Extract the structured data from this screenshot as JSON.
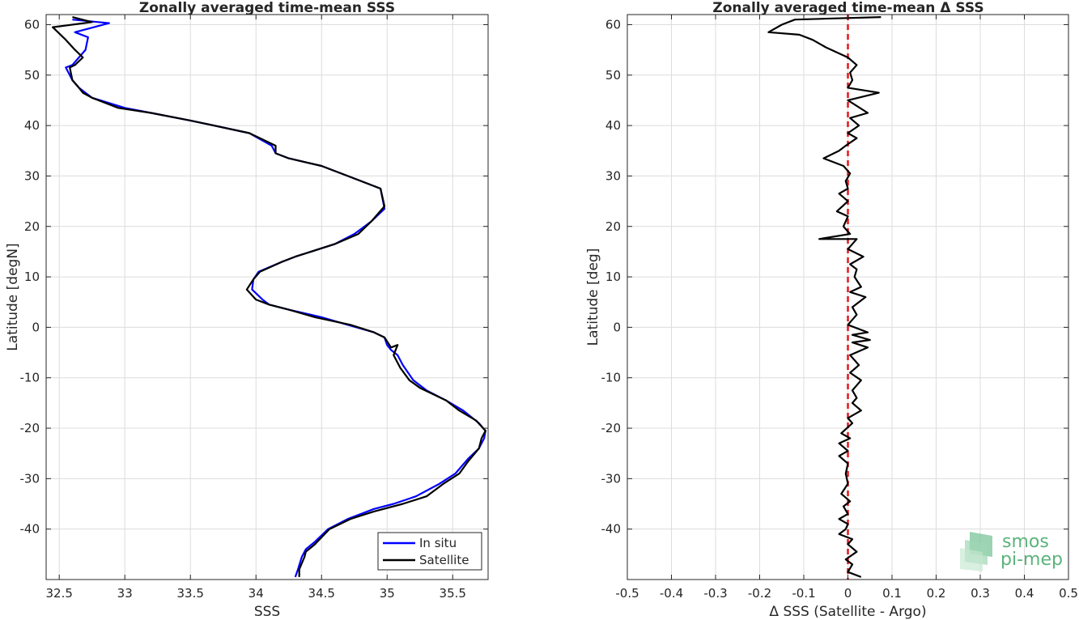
{
  "chart_data": [
    {
      "type": "line",
      "title": "Zonally averaged time-mean SSS",
      "xlabel": "SSS",
      "ylabel": "Latitude [degN]",
      "xlim": [
        32.4,
        35.77
      ],
      "ylim": [
        -50,
        62
      ],
      "xticks": [
        32.5,
        33,
        33.5,
        34,
        34.5,
        35,
        35.5
      ],
      "xtick_labels": [
        "32.5",
        "33",
        "33.5",
        "34",
        "34.5",
        "35",
        "35.5"
      ],
      "yticks": [
        -40,
        -30,
        -20,
        -10,
        0,
        10,
        20,
        30,
        40,
        50,
        60
      ],
      "ytick_labels": [
        "-40",
        "-30",
        "-20",
        "-10",
        "0",
        "10",
        "20",
        "30",
        "40",
        "50",
        "60"
      ],
      "grid": true,
      "legend_position": "bottom-right",
      "series": [
        {
          "name": "In situ",
          "color": "#0000ff",
          "points": [
            [
              34.3,
              -49.5
            ],
            [
              34.32,
              -48
            ],
            [
              34.35,
              -45.5
            ],
            [
              34.38,
              -44
            ],
            [
              34.45,
              -42.5
            ],
            [
              34.55,
              -40
            ],
            [
              34.7,
              -38
            ],
            [
              34.9,
              -36
            ],
            [
              35.05,
              -35
            ],
            [
              35.22,
              -33.5
            ],
            [
              35.4,
              -31
            ],
            [
              35.52,
              -29
            ],
            [
              35.62,
              -26
            ],
            [
              35.7,
              -24
            ],
            [
              35.74,
              -22
            ],
            [
              35.75,
              -20.5
            ],
            [
              35.7,
              -19
            ],
            [
              35.58,
              -16.5
            ],
            [
              35.45,
              -14.5
            ],
            [
              35.3,
              -12.5
            ],
            [
              35.2,
              -10.5
            ],
            [
              35.12,
              -7.5
            ],
            [
              35.08,
              -5.5
            ],
            [
              35.03,
              -4.5
            ],
            [
              35.0,
              -3.5
            ],
            [
              34.98,
              -2
            ],
            [
              34.9,
              -1
            ],
            [
              34.7,
              0.5
            ],
            [
              34.5,
              2
            ],
            [
              34.25,
              3.5
            ],
            [
              34.1,
              4.5
            ],
            [
              34.05,
              5.5
            ],
            [
              33.97,
              7.5
            ],
            [
              33.98,
              9.5
            ],
            [
              34.02,
              11
            ],
            [
              34.2,
              13
            ],
            [
              34.3,
              14
            ],
            [
              34.6,
              16.5
            ],
            [
              34.75,
              18.5
            ],
            [
              34.88,
              21
            ],
            [
              34.98,
              23.5
            ],
            [
              34.95,
              27.5
            ],
            [
              34.75,
              29.5
            ],
            [
              34.5,
              32
            ],
            [
              34.25,
              33.5
            ],
            [
              34.15,
              34.5
            ],
            [
              34.12,
              36
            ],
            [
              33.95,
              38.5
            ],
            [
              33.5,
              41
            ],
            [
              33.2,
              42.5
            ],
            [
              33.0,
              43.5
            ],
            [
              32.75,
              45.5
            ],
            [
              32.7,
              46.5
            ],
            [
              32.65,
              47.5
            ],
            [
              32.6,
              49
            ],
            [
              32.55,
              51.5
            ],
            [
              32.6,
              52
            ],
            [
              32.65,
              53.5
            ],
            [
              32.7,
              55
            ],
            [
              32.72,
              57.5
            ],
            [
              32.62,
              58.5
            ],
            [
              32.88,
              60.3
            ],
            [
              32.6,
              61
            ]
          ]
        },
        {
          "name": "Satellite",
          "color": "#000000",
          "points": [
            [
              34.33,
              -49.5
            ],
            [
              34.33,
              -48
            ],
            [
              34.37,
              -45.5
            ],
            [
              34.38,
              -44.5
            ],
            [
              34.45,
              -43
            ],
            [
              34.56,
              -40
            ],
            [
              34.72,
              -38
            ],
            [
              34.9,
              -36.5
            ],
            [
              35.12,
              -35
            ],
            [
              35.3,
              -33.5
            ],
            [
              35.43,
              -31
            ],
            [
              35.55,
              -29
            ],
            [
              35.62,
              -26.5
            ],
            [
              35.7,
              -24
            ],
            [
              35.72,
              -22
            ],
            [
              35.75,
              -20.5
            ],
            [
              35.68,
              -18.5
            ],
            [
              35.55,
              -16.5
            ],
            [
              35.45,
              -14.5
            ],
            [
              35.25,
              -12
            ],
            [
              35.17,
              -10.5
            ],
            [
              35.1,
              -8
            ],
            [
              35.05,
              -5.5
            ],
            [
              35.08,
              -3.5
            ],
            [
              35.03,
              -4
            ],
            [
              34.98,
              -2
            ],
            [
              34.9,
              -1
            ],
            [
              34.72,
              0.5
            ],
            [
              34.45,
              2
            ],
            [
              34.25,
              3.5
            ],
            [
              34.1,
              4.5
            ],
            [
              34.0,
              5.5
            ],
            [
              33.93,
              7.5
            ],
            [
              33.98,
              9.5
            ],
            [
              34.03,
              11
            ],
            [
              34.2,
              13
            ],
            [
              34.3,
              14
            ],
            [
              34.6,
              16.5
            ],
            [
              34.78,
              18.5
            ],
            [
              34.88,
              21
            ],
            [
              34.98,
              24
            ],
            [
              34.95,
              27.5
            ],
            [
              34.75,
              29.5
            ],
            [
              34.5,
              32
            ],
            [
              34.25,
              33.5
            ],
            [
              34.15,
              34.5
            ],
            [
              34.15,
              36
            ],
            [
              33.95,
              38.5
            ],
            [
              33.5,
              41
            ],
            [
              33.2,
              42.5
            ],
            [
              32.95,
              43.5
            ],
            [
              32.75,
              45.5
            ],
            [
              32.68,
              46.5
            ],
            [
              32.65,
              47.5
            ],
            [
              32.6,
              49
            ],
            [
              32.58,
              51.5
            ],
            [
              32.62,
              52
            ],
            [
              32.68,
              53.5
            ],
            [
              32.62,
              55
            ],
            [
              32.55,
              57
            ],
            [
              32.45,
              59.5
            ],
            [
              32.75,
              60.5
            ],
            [
              32.6,
              61.5
            ]
          ]
        }
      ]
    },
    {
      "type": "line",
      "title": "Zonally averaged time-mean Δ SSS",
      "xlabel": "Δ SSS (Satellite - Argo)",
      "ylabel": "Latitude [deg]",
      "xlim": [
        -0.5,
        0.5
      ],
      "ylim": [
        -50,
        62
      ],
      "xticks": [
        -0.5,
        -0.4,
        -0.3,
        -0.2,
        -0.1,
        0,
        0.1,
        0.2,
        0.3,
        0.4,
        0.5
      ],
      "xtick_labels": [
        "-0.5",
        "-0.4",
        "-0.3",
        "-0.2",
        "-0.1",
        "0",
        "0.1",
        "0.2",
        "0.3",
        "0.4",
        "0.5"
      ],
      "yticks": [
        -40,
        -30,
        -20,
        -10,
        0,
        10,
        20,
        30,
        40,
        50,
        60
      ],
      "ytick_labels": [
        "-40",
        "-30",
        "-20",
        "-10",
        "0",
        "10",
        "20",
        "30",
        "40",
        "50",
        "60"
      ],
      "grid": true,
      "reference_line": {
        "x": 0,
        "color": "#e6171a",
        "style": "dashed"
      },
      "series": [
        {
          "name": "",
          "color": "#000000",
          "points": [
            [
              0.03,
              -49.5
            ],
            [
              0.0,
              -48.5
            ],
            [
              0.01,
              -47
            ],
            [
              -0.005,
              -46
            ],
            [
              0.02,
              -44.5
            ],
            [
              0.0,
              -43
            ],
            [
              0.01,
              -42
            ],
            [
              -0.02,
              -41
            ],
            [
              -0.005,
              -40
            ],
            [
              0.0,
              -39
            ],
            [
              -0.02,
              -38
            ],
            [
              0.0,
              -37
            ],
            [
              -0.01,
              -35.5
            ],
            [
              0.005,
              -34.5
            ],
            [
              -0.015,
              -33
            ],
            [
              0.0,
              -31
            ],
            [
              -0.005,
              -29
            ],
            [
              0.0,
              -27
            ],
            [
              -0.02,
              -25.5
            ],
            [
              0.0,
              -24.5
            ],
            [
              -0.02,
              -23
            ],
            [
              0.005,
              -22
            ],
            [
              -0.015,
              -21
            ],
            [
              0.01,
              -19
            ],
            [
              0.0,
              -18
            ],
            [
              0.03,
              -16.5
            ],
            [
              0.01,
              -15
            ],
            [
              0.02,
              -14
            ],
            [
              0.01,
              -12.5
            ],
            [
              0.03,
              -10.5
            ],
            [
              0.005,
              -9
            ],
            [
              0.025,
              -7.5
            ],
            [
              0.005,
              -5.5
            ],
            [
              0.045,
              -4
            ],
            [
              0.01,
              -3
            ],
            [
              0.05,
              -2.5
            ],
            [
              0.01,
              -1.5
            ],
            [
              0.045,
              -1
            ],
            [
              0.0,
              0.5
            ],
            [
              0.02,
              2.5
            ],
            [
              0.01,
              4
            ],
            [
              0.04,
              6
            ],
            [
              0.005,
              7
            ],
            [
              0.03,
              8
            ],
            [
              0.015,
              10
            ],
            [
              0.02,
              11.5
            ],
            [
              0.005,
              12.5
            ],
            [
              0.035,
              14
            ],
            [
              0.0,
              15.5
            ],
            [
              0.02,
              17.5
            ],
            [
              -0.065,
              17.5
            ],
            [
              0.005,
              18.5
            ],
            [
              -0.01,
              20
            ],
            [
              0.0,
              22
            ],
            [
              -0.025,
              23
            ],
            [
              0.0,
              25
            ],
            [
              -0.02,
              26.5
            ],
            [
              0.0,
              27.5
            ],
            [
              -0.005,
              29
            ],
            [
              0.005,
              30.5
            ],
            [
              -0.01,
              32
            ],
            [
              -0.055,
              33.5
            ],
            [
              -0.02,
              35
            ],
            [
              -0.005,
              36
            ],
            [
              0.02,
              37.5
            ],
            [
              0.0,
              38.5
            ],
            [
              0.025,
              40
            ],
            [
              0.005,
              41.5
            ],
            [
              0.045,
              42.5
            ],
            [
              0.0,
              45
            ],
            [
              0.07,
              46.5
            ],
            [
              0.0,
              47.5
            ],
            [
              0.01,
              49
            ],
            [
              0.005,
              50.5
            ],
            [
              0.02,
              52
            ],
            [
              0.0,
              53.5
            ],
            [
              -0.05,
              55.5
            ],
            [
              -0.08,
              57
            ],
            [
              -0.11,
              58
            ],
            [
              -0.18,
              58.5
            ],
            [
              -0.15,
              60
            ],
            [
              -0.12,
              61
            ],
            [
              0.075,
              61.5
            ]
          ]
        }
      ]
    }
  ],
  "watermark": {
    "line1": "smos",
    "line2": "pi-mep",
    "color": "#5bb37b"
  }
}
